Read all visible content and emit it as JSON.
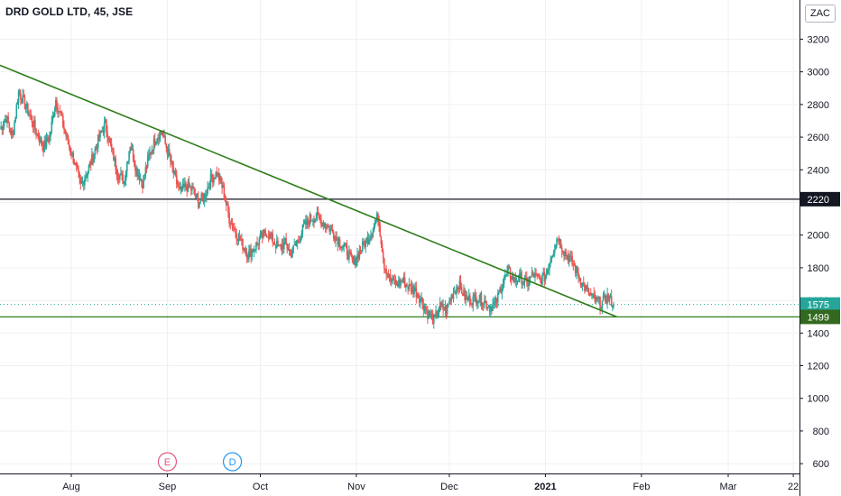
{
  "header": {
    "symbol_title": "DRD GOLD LTD, 45, JSE",
    "currency_button": "ZAC"
  },
  "colors": {
    "up": "#26a69a",
    "down": "#ef5350",
    "trendline": "#2e7d1a",
    "resistance_line": "#131722",
    "support_line": "#2e7d1a",
    "last_price_tag": "#26a69a",
    "support_tag": "#33691e",
    "resistance_tag": "#131722",
    "earnings_marker": "#e3577d",
    "dividend_marker": "#2196f3"
  },
  "markers": [
    {
      "name": "earnings-marker",
      "letter": "E",
      "date": "2020-09-01"
    },
    {
      "name": "dividend-marker",
      "letter": "D",
      "date": "2020-09-22"
    }
  ],
  "chart_data": {
    "type": "candlestick",
    "x_axis": {
      "ticks": [
        {
          "label": "Aug",
          "date": "2020-08-01"
        },
        {
          "label": "Sep",
          "date": "2020-09-01"
        },
        {
          "label": "Oct",
          "date": "2020-10-01"
        },
        {
          "label": "Nov",
          "date": "2020-11-01"
        },
        {
          "label": "Dec",
          "date": "2020-12-01"
        },
        {
          "label": "2021",
          "date": "2021-01-01",
          "bold": true
        },
        {
          "label": "Feb",
          "date": "2021-02-01"
        },
        {
          "label": "Mar",
          "date": "2021-03-01"
        },
        {
          "label": "22",
          "date": "2021-03-22"
        }
      ],
      "range": [
        "2020-07-09",
        "2021-03-24"
      ]
    },
    "y_axis": {
      "ticks": [
        600,
        800,
        1000,
        1200,
        1400,
        1600,
        1800,
        2000,
        2200,
        2400,
        2600,
        2800,
        3000,
        3200
      ],
      "range": [
        540,
        3440
      ],
      "position": "right"
    },
    "grid": true,
    "price_labels": [
      {
        "name": "last-price-tag",
        "value": 1575,
        "label": "1575"
      },
      {
        "name": "support-tag",
        "value": 1499,
        "label": "1499"
      },
      {
        "name": "resistance-tag",
        "value": 2220,
        "label": "2220"
      }
    ],
    "horizontal_lines": [
      {
        "name": "resistance-line",
        "value": 2220
      },
      {
        "name": "support-line",
        "value": 1499
      }
    ],
    "trendline": {
      "start": [
        "2020-07-09",
        3040
      ],
      "end": [
        "2021-01-24",
        1500
      ]
    },
    "last_price_line": 1575,
    "series_daily_closes": [
      [
        "2020-07-09",
        2650
      ],
      [
        "2020-07-11",
        2720
      ],
      [
        "2020-07-13",
        2600
      ],
      [
        "2020-07-15",
        2880
      ],
      [
        "2020-07-17",
        2800
      ],
      [
        "2020-07-19",
        2720
      ],
      [
        "2020-07-21",
        2620
      ],
      [
        "2020-07-23",
        2540
      ],
      [
        "2020-07-25",
        2600
      ],
      [
        "2020-07-27",
        2830
      ],
      [
        "2020-07-29",
        2700
      ],
      [
        "2020-07-31",
        2560
      ],
      [
        "2020-08-02",
        2450
      ],
      [
        "2020-08-04",
        2300
      ],
      [
        "2020-08-06",
        2380
      ],
      [
        "2020-08-08",
        2480
      ],
      [
        "2020-08-10",
        2600
      ],
      [
        "2020-08-12",
        2680
      ],
      [
        "2020-08-14",
        2520
      ],
      [
        "2020-08-16",
        2380
      ],
      [
        "2020-08-18",
        2330
      ],
      [
        "2020-08-20",
        2560
      ],
      [
        "2020-08-22",
        2400
      ],
      [
        "2020-08-24",
        2320
      ],
      [
        "2020-08-26",
        2480
      ],
      [
        "2020-08-28",
        2580
      ],
      [
        "2020-08-30",
        2640
      ],
      [
        "2020-09-01",
        2520
      ],
      [
        "2020-09-03",
        2380
      ],
      [
        "2020-09-05",
        2260
      ],
      [
        "2020-09-07",
        2300
      ],
      [
        "2020-09-09",
        2280
      ],
      [
        "2020-09-11",
        2200
      ],
      [
        "2020-09-13",
        2240
      ],
      [
        "2020-09-15",
        2340
      ],
      [
        "2020-09-17",
        2380
      ],
      [
        "2020-09-19",
        2280
      ],
      [
        "2020-09-21",
        2100
      ],
      [
        "2020-09-23",
        2020
      ],
      [
        "2020-09-25",
        1950
      ],
      [
        "2020-09-27",
        1880
      ],
      [
        "2020-09-29",
        1920
      ],
      [
        "2020-10-01",
        1980
      ],
      [
        "2020-10-03",
        2020
      ],
      [
        "2020-10-05",
        1970
      ],
      [
        "2020-10-07",
        1920
      ],
      [
        "2020-10-09",
        1950
      ],
      [
        "2020-10-11",
        1890
      ],
      [
        "2020-10-13",
        1960
      ],
      [
        "2020-10-15",
        2050
      ],
      [
        "2020-10-17",
        2100
      ],
      [
        "2020-10-19",
        2110
      ],
      [
        "2020-10-21",
        2080
      ],
      [
        "2020-10-23",
        2050
      ],
      [
        "2020-10-25",
        2000
      ],
      [
        "2020-10-27",
        1950
      ],
      [
        "2020-10-29",
        1900
      ],
      [
        "2020-10-31",
        1820
      ],
      [
        "2020-11-02",
        1900
      ],
      [
        "2020-11-04",
        1960
      ],
      [
        "2020-11-06",
        2020
      ],
      [
        "2020-11-08",
        2120
      ],
      [
        "2020-11-10",
        1820
      ],
      [
        "2020-11-12",
        1720
      ],
      [
        "2020-11-14",
        1700
      ],
      [
        "2020-11-16",
        1720
      ],
      [
        "2020-11-18",
        1680
      ],
      [
        "2020-11-20",
        1660
      ],
      [
        "2020-11-22",
        1600
      ],
      [
        "2020-11-24",
        1520
      ],
      [
        "2020-11-26",
        1480
      ],
      [
        "2020-11-28",
        1560
      ],
      [
        "2020-11-30",
        1540
      ],
      [
        "2020-12-02",
        1640
      ],
      [
        "2020-12-04",
        1700
      ],
      [
        "2020-12-06",
        1620
      ],
      [
        "2020-12-08",
        1600
      ],
      [
        "2020-12-10",
        1620
      ],
      [
        "2020-12-12",
        1600
      ],
      [
        "2020-12-14",
        1560
      ],
      [
        "2020-12-16",
        1580
      ],
      [
        "2020-12-18",
        1700
      ],
      [
        "2020-12-20",
        1780
      ],
      [
        "2020-12-22",
        1720
      ],
      [
        "2020-12-24",
        1740
      ],
      [
        "2020-12-26",
        1700
      ],
      [
        "2020-12-28",
        1760
      ],
      [
        "2020-12-30",
        1720
      ],
      [
        "2021-01-01",
        1750
      ],
      [
        "2021-01-03",
        1880
      ],
      [
        "2021-01-05",
        1990
      ],
      [
        "2021-01-07",
        1900
      ],
      [
        "2021-01-09",
        1850
      ],
      [
        "2021-01-11",
        1780
      ],
      [
        "2021-01-13",
        1700
      ],
      [
        "2021-01-15",
        1640
      ],
      [
        "2021-01-17",
        1600
      ],
      [
        "2021-01-19",
        1580
      ],
      [
        "2021-01-21",
        1620
      ],
      [
        "2021-01-23",
        1575
      ]
    ]
  }
}
